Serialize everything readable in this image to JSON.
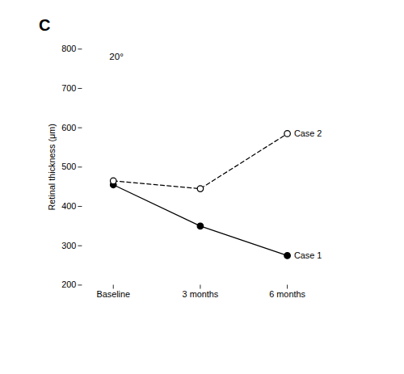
{
  "chart_data": {
    "type": "line",
    "title": "C",
    "annotations": [
      "20°"
    ],
    "categories": [
      "Baseline",
      "3 months",
      "6 months"
    ],
    "series": [
      {
        "name": "Case 1",
        "color": "#000000",
        "values": [
          455,
          350,
          275
        ],
        "line_style": "solid",
        "marker": "filled circle"
      },
      {
        "name": "Case 2",
        "color": "#000000",
        "values": [
          465,
          445,
          585
        ],
        "line_style": "dashed",
        "marker": "open circle"
      }
    ],
    "ylabel": "Retinal thickness (μm)",
    "ylim": [
      200,
      800
    ],
    "yticks": [
      200,
      300,
      400,
      500,
      600,
      700,
      800
    ],
    "grid": false
  }
}
